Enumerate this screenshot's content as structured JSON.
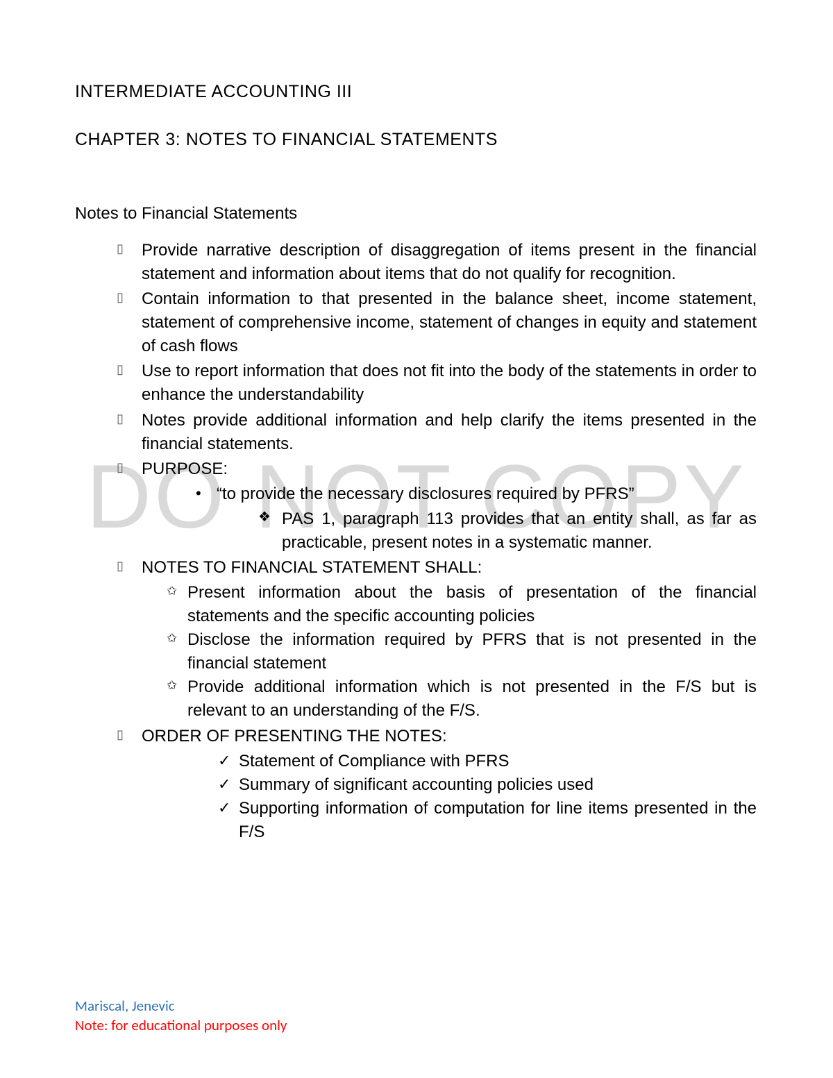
{
  "watermark": "DO NOT COPY",
  "course_title": "INTERMEDIATE ACCOUNTING III",
  "chapter_title": "CHAPTER 3: NOTES TO FINANCIAL STATEMENTS",
  "section_title": "Notes to Financial Statements",
  "bullets": {
    "l1": "▯",
    "disc": "•",
    "diamond": "❖",
    "star": "✩",
    "check": "✓"
  },
  "items": [
    "Provide narrative description of disaggregation of items present in the financial statement and information about items that do not qualify for recognition.",
    "Contain information to that presented in the balance sheet, income statement, statement of comprehensive income, statement of changes in equity and statement of cash flows",
    "Use to report information that does not fit into the body of the statements in order to enhance the understandability",
    "Notes provide additional information and help clarify the items presented in the financial statements.",
    "PURPOSE:",
    "NOTES TO FINANCIAL STATEMENT SHALL:",
    "ORDER OF PRESENTING THE NOTES:"
  ],
  "purpose_sub": "“to provide the necessary disclosures required by PFRS”",
  "purpose_sub2": "PAS 1, paragraph 113 provides that an entity shall, as far as practicable, present notes in a systematic manner.",
  "shall": [
    "Present information about the basis of presentation of the financial statements and the specific accounting policies",
    "Disclose the information required by PFRS that is not presented in the financial statement",
    "Provide additional information which is not presented in the F/S but is relevant to an understanding of the F/S."
  ],
  "order": [
    "Statement of Compliance with PFRS",
    "Summary of significant accounting policies used",
    "Supporting information of computation for line items presented in the F/S"
  ],
  "footer": {
    "author": "Mariscal, Jenevic",
    "note": "Note: for educational purposes only"
  }
}
